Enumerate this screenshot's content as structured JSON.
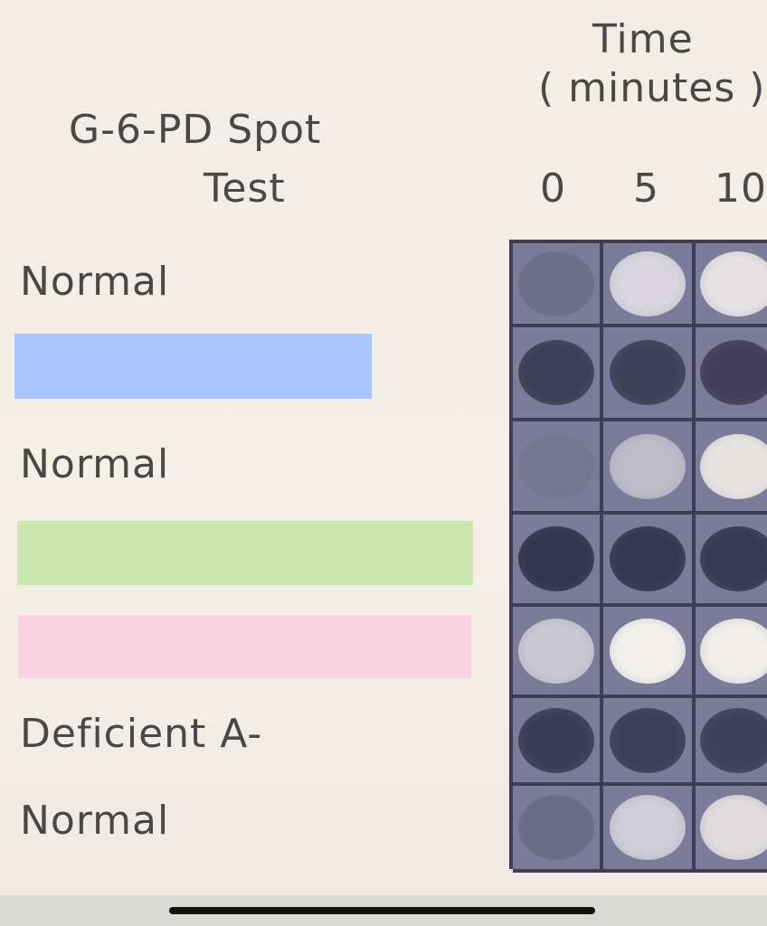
{
  "title": "G-6-PD Spot Test",
  "title_lines": [
    "G-6-PD  Spot",
    "Test"
  ],
  "time_header": {
    "label": "Time",
    "unit": "( minutes )"
  },
  "time_columns": [
    "0",
    "5",
    "10"
  ],
  "row_labels": [
    "Normal",
    "",
    "Normal",
    "",
    "",
    "Deficient   A-",
    "Normal"
  ],
  "redaction_colors": {
    "blue": "#a8c6fd",
    "green": "#cbe6b0",
    "pink": "#fad3e1"
  },
  "spot_colors": [
    [
      "#6f6d88",
      "#d8d6dc",
      "#e4e2e2"
    ],
    [
      "#3f3d56",
      "#413f58",
      "#433f5a"
    ],
    [
      "#77758f",
      "#bdbbc8",
      "#e6e4e2"
    ],
    [
      "#35334d",
      "#37354f",
      "#3a3852"
    ],
    [
      "#c9c7d2",
      "#f2f0ec",
      "#f0eeea"
    ],
    [
      "#3d3b55",
      "#3f3d57",
      "#413f59"
    ],
    [
      "#6c6a86",
      "#cfcdd6",
      "#dedcdc"
    ]
  ]
}
